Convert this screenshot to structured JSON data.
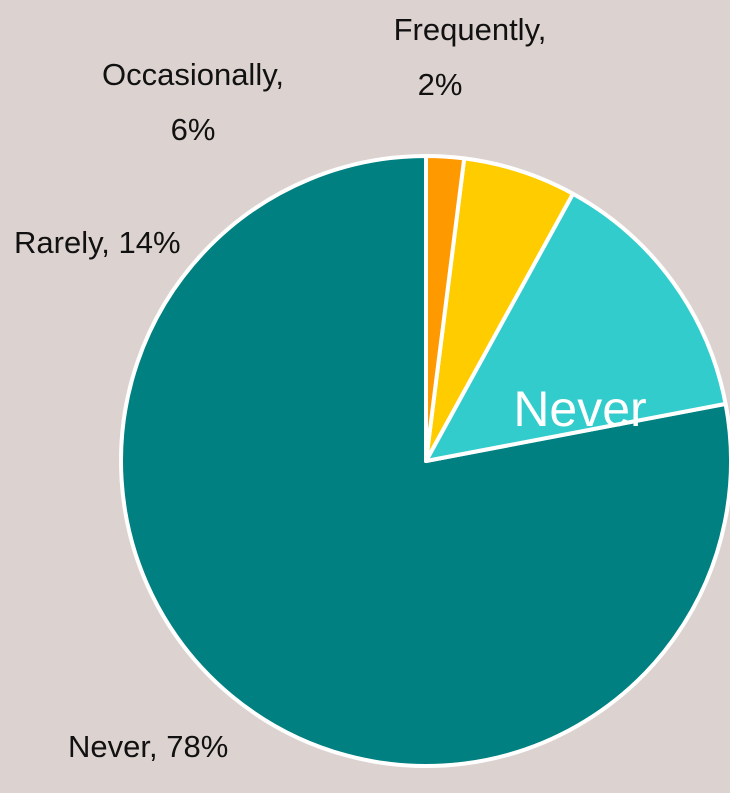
{
  "chart_data": {
    "type": "pie",
    "slices": [
      {
        "name": "Never",
        "value": 78,
        "label": "Never, 78%",
        "color": "#008080"
      },
      {
        "name": "Rarely",
        "value": 14,
        "label": "Rarely, 14%",
        "color": "#33cccc"
      },
      {
        "name": "Occasionally",
        "value": 6,
        "label_lines": [
          "Occasionally,",
          "6%"
        ],
        "color": "#ffcc00"
      },
      {
        "name": "Frequently",
        "value": 2,
        "label_lines": [
          "Frequently,",
          "2%"
        ],
        "color": "#ff9900"
      }
    ],
    "inner_label": "Never",
    "start": "top",
    "direction": "counterclockwise"
  }
}
